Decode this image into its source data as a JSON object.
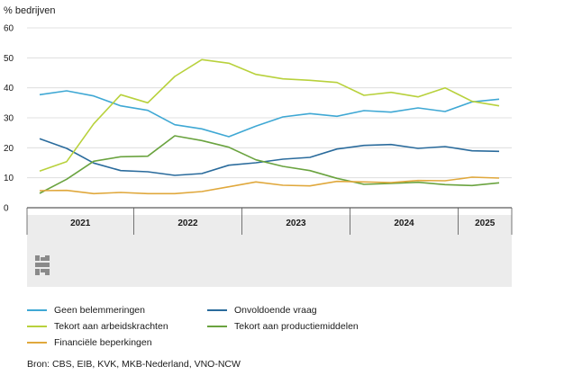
{
  "chart_data": {
    "type": "line",
    "ylabel": "% bedrijven",
    "ylim": [
      0,
      60
    ],
    "yticks": [
      0,
      10,
      20,
      30,
      40,
      50,
      60
    ],
    "x_periods": [
      "2021",
      "2022",
      "2023",
      "2024",
      "2025"
    ],
    "x_quarters": [
      "2021 Q1",
      "2021 Q2",
      "2021 Q3",
      "2021 Q4",
      "2022 Q1",
      "2022 Q2",
      "2022 Q3",
      "2022 Q4",
      "2023 Q1",
      "2023 Q2",
      "2023 Q3",
      "2023 Q4",
      "2024 Q1",
      "2024 Q2",
      "2024 Q3",
      "2024 Q4",
      "2025 Q1",
      "2025 Q2"
    ],
    "series": [
      {
        "name": "Geen belemmeringen",
        "color": "#3fa8d4",
        "values": [
          37.7,
          39.0,
          37.3,
          34.0,
          32.5,
          27.7,
          26.3,
          23.7,
          27.2,
          30.3,
          31.4,
          30.5,
          32.4,
          31.9,
          33.3,
          32.1,
          35.3,
          36.2
        ]
      },
      {
        "name": "Onvoldoende vraag",
        "color": "#2a6b9c",
        "values": [
          23.0,
          19.8,
          14.9,
          12.4,
          12.0,
          10.8,
          11.4,
          14.2,
          15.0,
          16.2,
          16.8,
          19.6,
          20.8,
          21.1,
          19.8,
          20.4,
          19.0,
          18.8
        ]
      },
      {
        "name": "Tekort aan arbeidskrachten",
        "color": "#b8d13c",
        "values": [
          12.2,
          15.4,
          28.0,
          37.7,
          35.0,
          43.8,
          49.4,
          48.2,
          44.5,
          43.0,
          42.5,
          41.8,
          37.5,
          38.5,
          37.0,
          40.0,
          35.5,
          34.0
        ]
      },
      {
        "name": "Tekort aan productiemiddelen",
        "color": "#6aa33f",
        "values": [
          4.8,
          9.5,
          15.5,
          17.0,
          17.2,
          24.0,
          22.4,
          20.2,
          16.0,
          13.8,
          12.4,
          9.8,
          7.8,
          8.1,
          8.5,
          7.7,
          7.4,
          8.3
        ]
      },
      {
        "name": "Financiële beperkingen",
        "color": "#e0a83c",
        "values": [
          5.7,
          5.8,
          4.7,
          5.1,
          4.7,
          4.7,
          5.4,
          7.0,
          8.6,
          7.5,
          7.3,
          8.8,
          8.6,
          8.4,
          9.1,
          9.0,
          10.2,
          9.9
        ]
      }
    ]
  },
  "legend": [
    {
      "label": "Geen belemmeringen",
      "color": "#3fa8d4"
    },
    {
      "label": "Onvoldoende vraag",
      "color": "#2a6b9c"
    },
    {
      "label": "Tekort aan arbeidskrachten",
      "color": "#b8d13c"
    },
    {
      "label": "Tekort aan productiemiddelen",
      "color": "#6aa33f"
    },
    {
      "label": "Financiële beperkingen",
      "color": "#e0a83c"
    }
  ],
  "source": "Bron: CBS, EIB, KVK, MKB-Nederland, VNO-NCW",
  "logo_text": "cbs"
}
